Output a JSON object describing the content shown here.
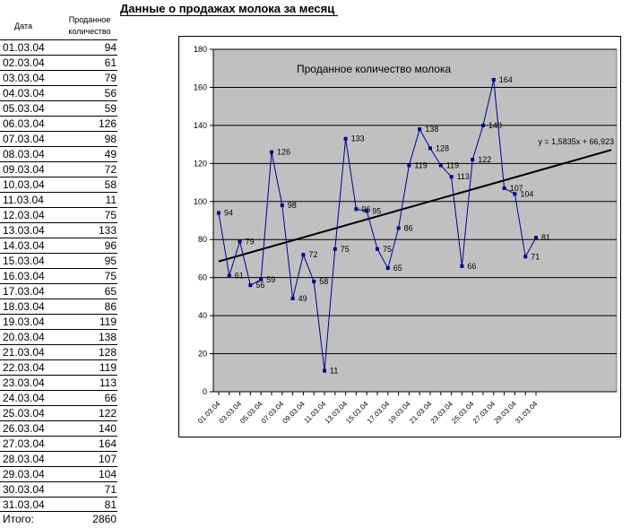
{
  "title": "Данные о продажах молока за месяц",
  "headers": {
    "date": "Дата",
    "qty_line1": "Проданное",
    "qty_line2": "количество"
  },
  "rows": [
    {
      "date": "01.03.04",
      "qty": "94"
    },
    {
      "date": "02.03.04",
      "qty": "61"
    },
    {
      "date": "03.03.04",
      "qty": "79"
    },
    {
      "date": "04.03.04",
      "qty": "56"
    },
    {
      "date": "05.03.04",
      "qty": "59"
    },
    {
      "date": "06.03.04",
      "qty": "126"
    },
    {
      "date": "07.03.04",
      "qty": "98"
    },
    {
      "date": "08.03.04",
      "qty": "49"
    },
    {
      "date": "09.03.04",
      "qty": "72"
    },
    {
      "date": "10.03.04",
      "qty": "58"
    },
    {
      "date": "11.03.04",
      "qty": "11"
    },
    {
      "date": "12.03.04",
      "qty": "75"
    },
    {
      "date": "13.03.04",
      "qty": "133"
    },
    {
      "date": "14.03.04",
      "qty": "96"
    },
    {
      "date": "15.03.04",
      "qty": "95"
    },
    {
      "date": "16.03.04",
      "qty": "75"
    },
    {
      "date": "17.03.04",
      "qty": "65"
    },
    {
      "date": "18.03.04",
      "qty": "86"
    },
    {
      "date": "19.03.04",
      "qty": "119"
    },
    {
      "date": "20.03.04",
      "qty": "138"
    },
    {
      "date": "21.03.04",
      "qty": "128"
    },
    {
      "date": "22.03.04",
      "qty": "119"
    },
    {
      "date": "23.03.04",
      "qty": "113"
    },
    {
      "date": "24.03.04",
      "qty": "66"
    },
    {
      "date": "25.03.04",
      "qty": "122"
    },
    {
      "date": "26.03.04",
      "qty": "140"
    },
    {
      "date": "27.03.04",
      "qty": "164"
    },
    {
      "date": "28.03.04",
      "qty": "107"
    },
    {
      "date": "29.03.04",
      "qty": "104"
    },
    {
      "date": "30.03.04",
      "qty": "71"
    },
    {
      "date": "31.03.04",
      "qty": "81"
    }
  ],
  "total": {
    "label": "Итого:",
    "value": "2860"
  },
  "chart_data": {
    "type": "line",
    "title": "Проданное количество молока",
    "x": [
      "01.03.04",
      "02.03.04",
      "03.03.04",
      "04.03.04",
      "05.03.04",
      "06.03.04",
      "07.03.04",
      "08.03.04",
      "09.03.04",
      "10.03.04",
      "11.03.04",
      "12.03.04",
      "13.03.04",
      "14.03.04",
      "15.03.04",
      "16.03.04",
      "17.03.04",
      "18.03.04",
      "19.03.04",
      "20.03.04",
      "21.03.04",
      "22.03.04",
      "23.03.04",
      "24.03.04",
      "25.03.04",
      "26.03.04",
      "27.03.04",
      "28.03.04",
      "29.03.04",
      "30.03.04",
      "31.03.04"
    ],
    "x_tick_labels": [
      "01.03.04",
      "03.03.04",
      "05.03.04",
      "07.03.04",
      "09.03.04",
      "11.03.04",
      "13.03.04",
      "15.03.04",
      "17.03.04",
      "19.03.04",
      "21.03.04",
      "23.03.04",
      "25.03.04",
      "27.03.04",
      "29.03.04",
      "31.03.04"
    ],
    "series": [
      {
        "values": [
          94,
          61,
          79,
          56,
          59,
          126,
          98,
          49,
          72,
          58,
          11,
          75,
          133,
          96,
          95,
          75,
          65,
          86,
          119,
          138,
          128,
          119,
          113,
          66,
          122,
          140,
          164,
          107,
          104,
          71,
          81
        ]
      }
    ],
    "trendline": {
      "equation": "y = 1,5835x + 66,923",
      "slope": 1.5835,
      "intercept": 66.923
    },
    "yticks": [
      "0",
      "20",
      "40",
      "60",
      "80",
      "100",
      "120",
      "140",
      "160",
      "180"
    ],
    "ylim": [
      0,
      180
    ],
    "grid": true,
    "legend": "none",
    "plot_bg": "#c0c0c0",
    "series_color": "#00008b",
    "trend_color": "#000000"
  }
}
